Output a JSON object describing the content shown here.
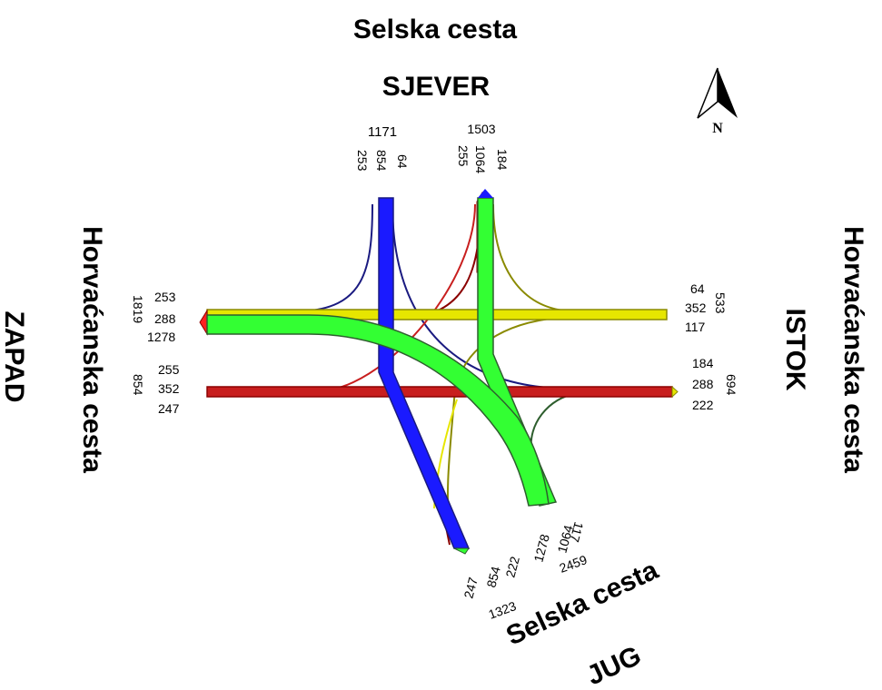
{
  "roads": {
    "north_name": "Selska cesta",
    "south_name": "Selska cesta",
    "west_name": "Horvaćanska cesta",
    "east_name": "Horvaćanska cesta"
  },
  "directions": {
    "north": "SJEVER",
    "south": "JUG",
    "west": "ZAPAD",
    "east": "ISTOK"
  },
  "compass": {
    "label": "N"
  },
  "flows": {
    "north": {
      "in_total": "1171",
      "out_total": "1503",
      "in_1": "253",
      "in_2": "854",
      "in_3": "64",
      "out_1": "255",
      "out_2": "1064",
      "out_3": "184"
    },
    "west": {
      "in_total": "1819",
      "out_total": "854",
      "in_1": "253",
      "in_2": "288",
      "in_3": "1278",
      "out_1": "255",
      "out_2": "352",
      "out_3": "247"
    },
    "east": {
      "in_total": "533",
      "out_total": "694",
      "in_1": "64",
      "in_2": "352",
      "in_3": "117",
      "out_1": "184",
      "out_2": "288",
      "out_3": "222"
    },
    "south": {
      "in_total": "1323",
      "out_total": "2459",
      "in_1": "247",
      "in_2": "854",
      "in_3": "222",
      "out_1": "1278",
      "out_2": "1064",
      "out_3": "117"
    }
  },
  "colors": {
    "blue": "#1a1aff",
    "green": "#33ff33",
    "red": "#c81e1e",
    "yellow": "#e6e600",
    "navy": "#1a1a80",
    "darkred": "#8b0000",
    "olive": "#8a8a00",
    "darkgreen": "#2e5e2e"
  }
}
